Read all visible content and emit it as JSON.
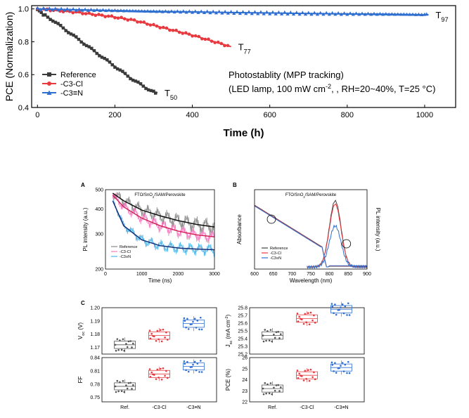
{
  "chart_data": [
    {
      "type": "line",
      "ylabel": "PCE (Normalization)",
      "xlabel": "Time (h)",
      "xlim": [
        -15,
        1080
      ],
      "ylim": [
        0.4,
        1.02
      ],
      "xticks": [
        "0",
        "200",
        "400",
        "600",
        "800",
        "1000"
      ],
      "yticks": [
        "0.4",
        "0.6",
        "0.8",
        "1.0"
      ],
      "legend_position": "bottom-left",
      "series": [
        {
          "name": "Reference",
          "color": "#3a3a3a",
          "marker": "square",
          "x": [
            0,
            10,
            20,
            40,
            60,
            80,
            100,
            120,
            140,
            160,
            180,
            200,
            220,
            240,
            260,
            280,
            300,
            310
          ],
          "y": [
            1.0,
            0.975,
            0.96,
            0.93,
            0.895,
            0.86,
            0.825,
            0.79,
            0.755,
            0.72,
            0.685,
            0.65,
            0.615,
            0.58,
            0.55,
            0.52,
            0.495,
            0.49
          ],
          "end_label": "T50",
          "end_label_main": "T",
          "end_label_sub": "50"
        },
        {
          "name": "-C3-Cl",
          "color": "#e8393f",
          "marker": "circle",
          "x": [
            0,
            50,
            100,
            150,
            200,
            250,
            300,
            350,
            400,
            450,
            500
          ],
          "y": [
            1.0,
            0.99,
            0.98,
            0.965,
            0.95,
            0.93,
            0.9,
            0.87,
            0.84,
            0.805,
            0.77
          ],
          "end_label": "T77",
          "end_label_main": "T",
          "end_label_sub": "77"
        },
        {
          "name": "-C3≡N",
          "color": "#2f6fd0",
          "marker": "triangle",
          "x": [
            0,
            100,
            200,
            300,
            400,
            500,
            600,
            700,
            800,
            900,
            1000,
            1010
          ],
          "y": [
            1.0,
            0.995,
            0.99,
            0.985,
            0.982,
            0.978,
            0.975,
            0.972,
            0.97,
            0.968,
            0.965,
            0.965
          ],
          "end_label": "T97",
          "end_label_main": "T",
          "end_label_sub": "97"
        }
      ],
      "annotation_line1": "Photostablity (MPP tracking)",
      "annotation_line2_a": "(LED lamp, 100 mW cm",
      "annotation_line2_sup": "-2",
      "annotation_line2_b": ", , RH=20~40%, T=25 °C)"
    },
    {
      "type": "line",
      "panel_label": "A",
      "title": "FTO/SnO2/SAM/Perovskite",
      "title_a": "FTO/SnO",
      "title_sub": "2",
      "title_b": "/SAM/Perovskite",
      "ylabel": "PL intensity (a.u.)",
      "xlabel": "Time (ns)",
      "xlim": [
        0,
        3000
      ],
      "ylim": [
        200,
        500
      ],
      "y_scale": "log",
      "xticks": [
        "0",
        "1000",
        "2000",
        "3000"
      ],
      "yticks": [
        "200",
        "300",
        "400",
        "500"
      ],
      "series": [
        {
          "name": "Reference",
          "color": "#888888",
          "fit_color": "#111111",
          "x": [
            200,
            500,
            1000,
            1500,
            2000,
            2500,
            3000
          ],
          "y": [
            480,
            440,
            395,
            370,
            350,
            335,
            325
          ]
        },
        {
          "name": "-C3-Cl",
          "color": "#f47ac0",
          "fit_color": "#d2235a",
          "x": [
            200,
            500,
            1000,
            1500,
            2000,
            2500,
            3000
          ],
          "y": [
            470,
            410,
            360,
            330,
            310,
            297,
            290
          ]
        },
        {
          "name": "-C3≡N",
          "color": "#4ab4e8",
          "fit_color": "#14307a",
          "x": [
            200,
            500,
            1000,
            1500,
            2000,
            2500,
            3000
          ],
          "y": [
            440,
            330,
            280,
            262,
            255,
            252,
            250
          ]
        }
      ]
    },
    {
      "type": "line",
      "panel_label": "B",
      "title_a": "FTO/SnO",
      "title_sub": "2",
      "title_b": "/SAM/Perovskite",
      "ylabel_left": "Absorbance",
      "ylabel_right": "PL intensity (a.u.)",
      "xlabel": "Wavelength (nm)",
      "xlim": [
        600,
        900
      ],
      "xticks": [
        "600",
        "650",
        "700",
        "750",
        "800",
        "850",
        "900"
      ],
      "series": [
        {
          "name": "Reference",
          "color": "#444444",
          "pl_peak": 1.0
        },
        {
          "name": "-C3-Cl",
          "color": "#e8393f",
          "pl_peak": 0.95
        },
        {
          "name": "-C3≡N",
          "color": "#2f6fd0",
          "pl_peak": 0.62
        }
      ]
    },
    {
      "type": "box",
      "panel_label": "C",
      "categories": [
        "Ref.",
        "-C3-Cl",
        "-C3≡N"
      ],
      "colors": [
        "#555555",
        "#e8393f",
        "#2f6fd0"
      ],
      "panels": [
        {
          "ylabel_main": "V",
          "ylabel_sub": "oc",
          "ylabel_tail": " (V)",
          "ylim": [
            1.165,
            1.2
          ],
          "yticks": [
            "1.17",
            "1.18",
            "1.19",
            "1.20"
          ],
          "medians": [
            1.172,
            1.179,
            1.188
          ]
        },
        {
          "ylabel_main": "J",
          "ylabel_sub": "sc",
          "ylabel_tail": " (mA cm",
          "ylabel_sup": "-2",
          "ylabel_end": ")",
          "ylim": [
            25.2,
            25.8
          ],
          "yticks": [
            "25.2",
            "25.3",
            "25.4",
            "25.5",
            "25.6",
            "25.7",
            "25.8"
          ],
          "medians": [
            25.44,
            25.66,
            25.78
          ]
        },
        {
          "ylabel_main": "FF",
          "ylim": [
            0.74,
            0.84
          ],
          "yticks": [
            "0.75",
            "0.78",
            "0.81",
            "0.84"
          ],
          "medians": [
            0.775,
            0.803,
            0.82
          ]
        },
        {
          "ylabel_main": "PCE (%)",
          "ylim": [
            22,
            26
          ],
          "yticks": [
            "22",
            "23",
            "24",
            "25",
            "26"
          ],
          "medians": [
            23.2,
            24.4,
            25.1
          ]
        }
      ]
    }
  ]
}
